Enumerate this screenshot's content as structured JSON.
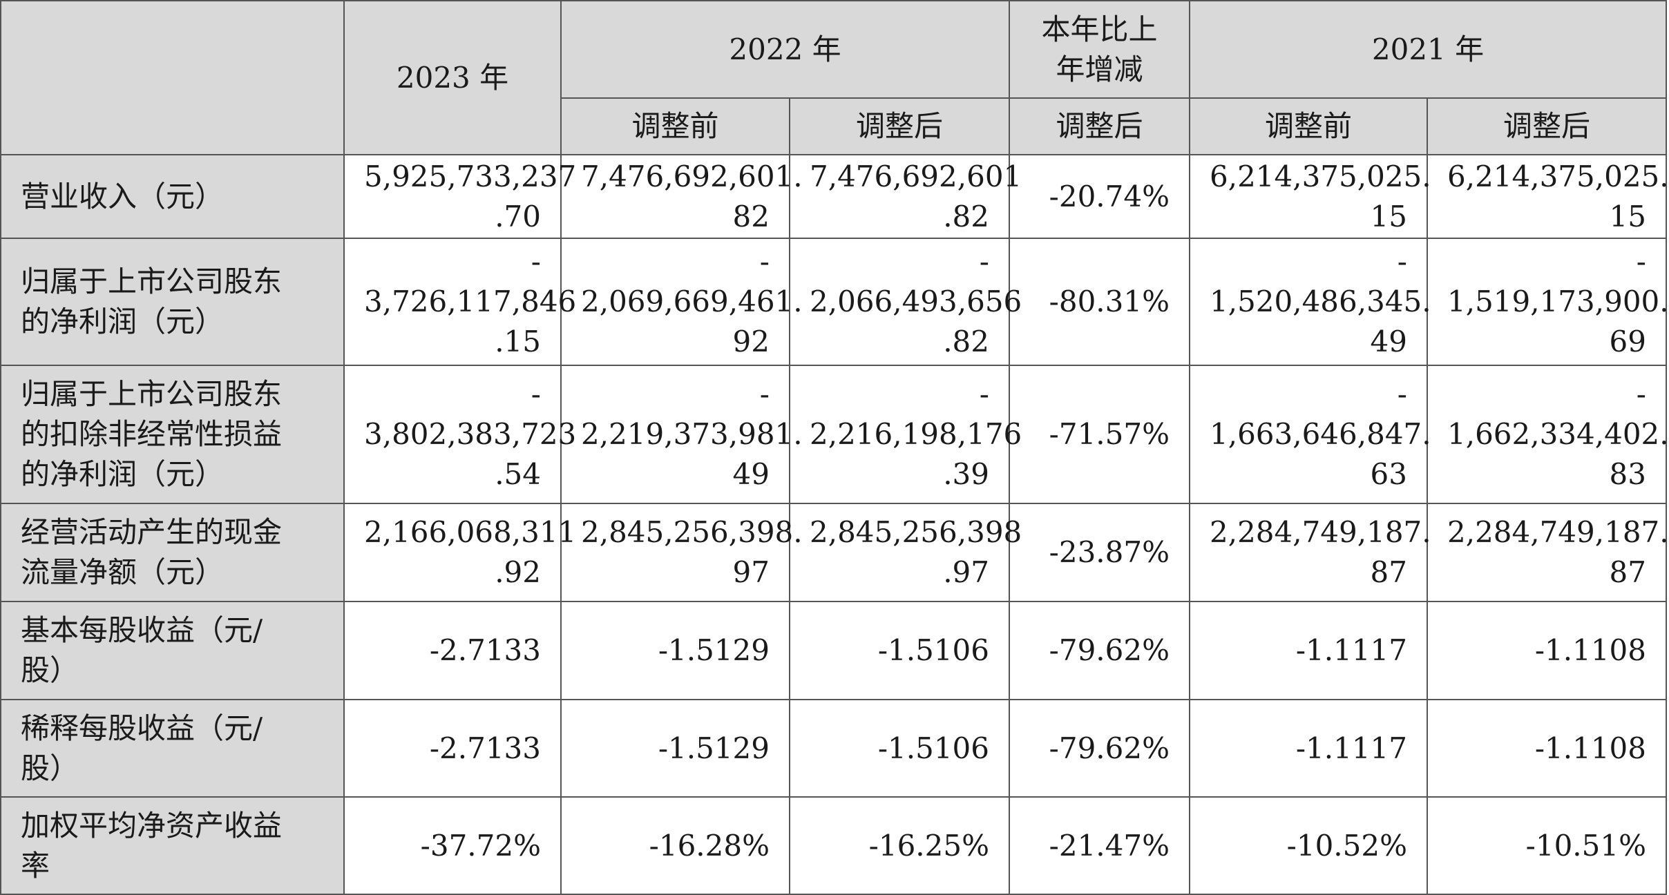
{
  "header": {
    "corner": "",
    "year_2023": "2023 年",
    "year_2022": "2022 年",
    "change": [
      "本年比上",
      "年增减"
    ],
    "year_2021": "2021 年",
    "sub": {
      "before_2022": "调整前",
      "after_2022": "调整后",
      "after_change": "调整后",
      "before_2021": "调整前",
      "after_2021": "调整后"
    }
  },
  "rows": [
    {
      "label": [
        "营业收入（元）"
      ],
      "cells": [
        [
          "5,925,733,237",
          ".70"
        ],
        [
          "7,476,692,601.",
          "82"
        ],
        [
          "7,476,692,601",
          ".82"
        ],
        [
          "-20.74%"
        ],
        [
          "6,214,375,025.",
          "15"
        ],
        [
          "6,214,375,025.",
          "15"
        ]
      ]
    },
    {
      "label": [
        "归属于上市公司股东",
        "的净利润（元）"
      ],
      "cells": [
        [
          "-",
          "3,726,117,846",
          ".15"
        ],
        [
          "-",
          "2,069,669,461.",
          "92"
        ],
        [
          "-",
          "2,066,493,656",
          ".82"
        ],
        [
          "-80.31%"
        ],
        [
          "-",
          "1,520,486,345.",
          "49"
        ],
        [
          "-",
          "1,519,173,900.",
          "69"
        ]
      ]
    },
    {
      "label": [
        "归属于上市公司股东",
        "的扣除非经常性损益",
        "的净利润（元）"
      ],
      "cells": [
        [
          "-",
          "3,802,383,723",
          ".54"
        ],
        [
          "-",
          "2,219,373,981.",
          "49"
        ],
        [
          "-",
          "2,216,198,176",
          ".39"
        ],
        [
          "-71.57%"
        ],
        [
          "-",
          "1,663,646,847.",
          "63"
        ],
        [
          "-",
          "1,662,334,402.",
          "83"
        ]
      ]
    },
    {
      "label": [
        "经营活动产生的现金",
        "流量净额（元）"
      ],
      "cells": [
        [
          "2,166,068,311",
          ".92"
        ],
        [
          "2,845,256,398.",
          "97"
        ],
        [
          "2,845,256,398",
          ".97"
        ],
        [
          "-23.87%"
        ],
        [
          "2,284,749,187.",
          "87"
        ],
        [
          "2,284,749,187.",
          "87"
        ]
      ]
    },
    {
      "label": [
        "基本每股收益（元/",
        "股）"
      ],
      "cells": [
        [
          "-2.7133"
        ],
        [
          "-1.5129"
        ],
        [
          "-1.5106"
        ],
        [
          "-79.62%"
        ],
        [
          "-1.1117"
        ],
        [
          "-1.1108"
        ]
      ]
    },
    {
      "label": [
        "稀释每股收益（元/",
        "股）"
      ],
      "cells": [
        [
          "-2.7133"
        ],
        [
          "-1.5129"
        ],
        [
          "-1.5106"
        ],
        [
          "-79.62%"
        ],
        [
          "-1.1117"
        ],
        [
          "-1.1108"
        ]
      ]
    },
    {
      "label": [
        "加权平均净资产收益",
        "率"
      ],
      "cells": [
        [
          "-37.72%"
        ],
        [
          "-16.28%"
        ],
        [
          "-16.25%"
        ],
        [
          "-21.47%"
        ],
        [
          "-10.52%"
        ],
        [
          "-10.51%"
        ]
      ]
    }
  ]
}
